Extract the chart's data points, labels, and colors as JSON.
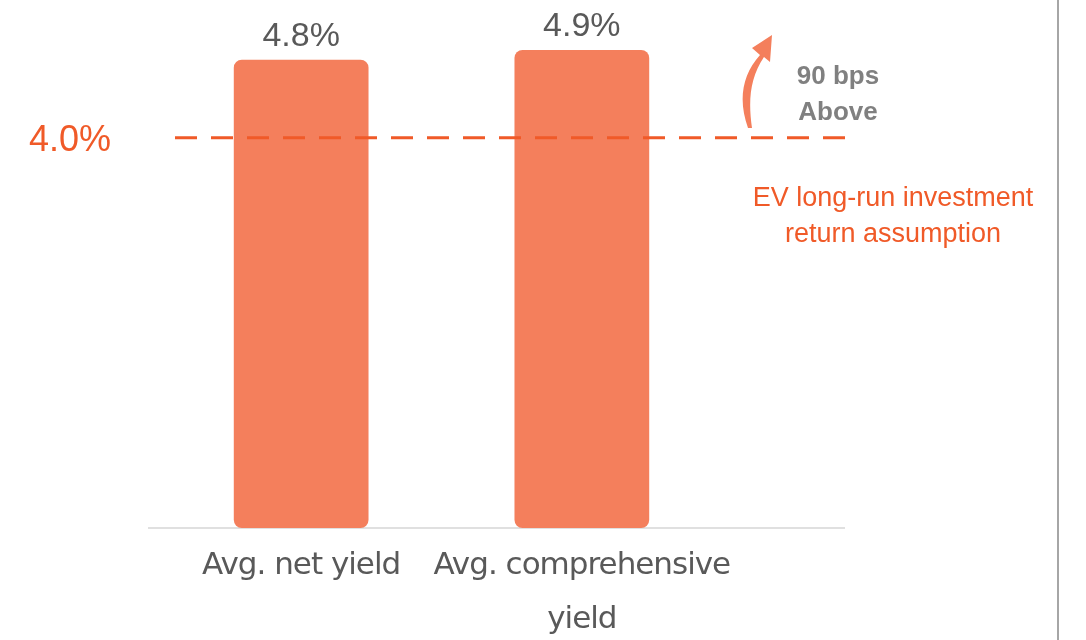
{
  "chart_data": {
    "type": "bar",
    "categories": [
      "Avg. net yield",
      "Avg. comprehensive yield"
    ],
    "values": [
      4.8,
      4.9
    ],
    "value_labels": [
      "4.8%",
      "4.9%"
    ],
    "color": "#f47f5c",
    "tick_labels": "x",
    "ref_lines": [
      {
        "axis": "y",
        "value": 4.0,
        "label": "4.0%",
        "color": "#f05a28",
        "line_style": "dashed"
      }
    ],
    "annotations": [
      "90 bps Above",
      "EV long-run investment return assumption"
    ]
  }
}
